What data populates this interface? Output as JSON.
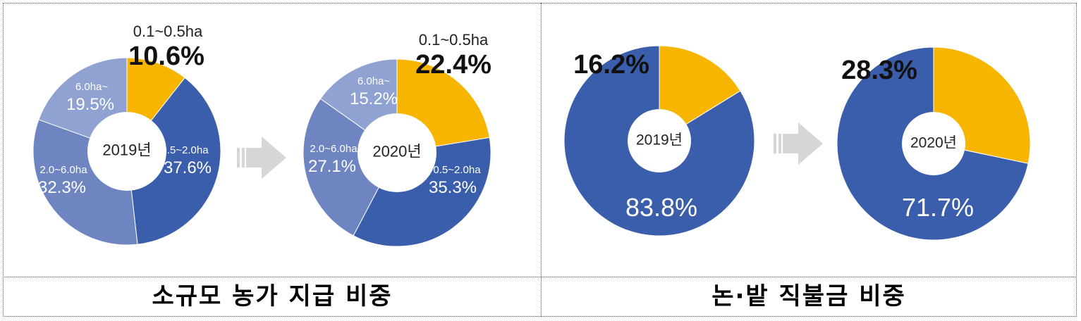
{
  "chart_data": [
    {
      "type": "pie",
      "categories": [
        "0.1~0.5ha",
        "0.5~2.0ha",
        "2.0~6.0ha",
        "6.0ha~"
      ],
      "values": [
        10.6,
        37.6,
        32.3,
        19.5
      ],
      "labels": [
        "10.6%",
        "37.6%",
        "32.3%",
        "19.5%"
      ],
      "colors": [
        "#f8b500",
        "#3a5eab",
        "#6f85c2",
        "#8fa2d2"
      ],
      "center_label": "2019년"
    },
    {
      "type": "pie",
      "categories": [
        "0.1~0.5ha",
        "0.5~2.0ha",
        "2.0~6.0ha",
        "6.0ha~"
      ],
      "values": [
        22.4,
        35.3,
        27.1,
        15.2
      ],
      "labels": [
        "22.4%",
        "35.3%",
        "27.1%",
        "15.2%"
      ],
      "colors": [
        "#f8b500",
        "#3a5eab",
        "#6f85c2",
        "#8fa2d2"
      ],
      "center_label": "2020년"
    },
    {
      "type": "pie",
      "values": [
        16.2,
        83.8
      ],
      "labels": [
        "16.2%",
        "83.8%"
      ],
      "colors": [
        "#f8b500",
        "#3a5eab"
      ],
      "center_label": "2019년"
    },
    {
      "type": "pie",
      "values": [
        28.3,
        71.7
      ],
      "labels": [
        "28.3%",
        "71.7%"
      ],
      "colors": [
        "#f8b500",
        "#3a5eab"
      ],
      "center_label": "2020년"
    }
  ],
  "captions": {
    "left": "소규모 농가 지급 비중",
    "right": "논·밭 직불금 비중"
  },
  "arrow_color": "#d6d6d6"
}
